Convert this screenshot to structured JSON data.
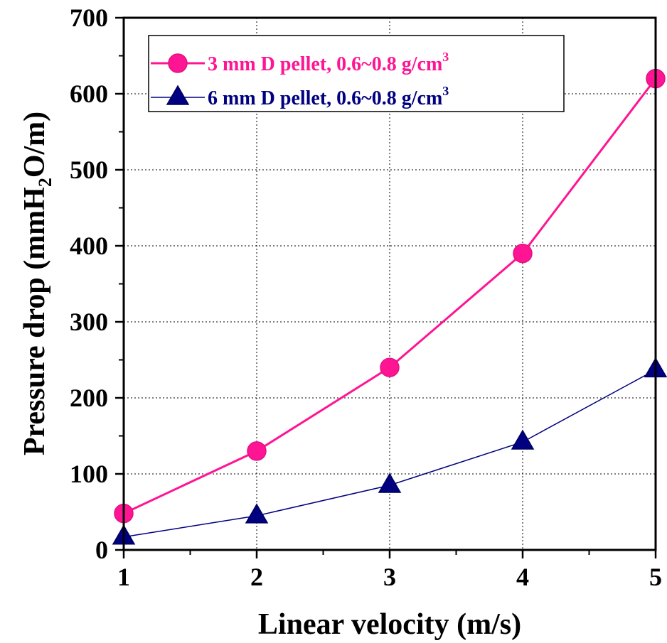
{
  "chart_data": {
    "type": "line",
    "title": "",
    "xlabel": "Linear velocity (m/s)",
    "ylabel": {
      "before": "Pressure drop (mmH",
      "sub": "2",
      "after": "O/m)"
    },
    "xlim": [
      1,
      5
    ],
    "ylim": [
      0,
      700
    ],
    "xticks": [
      "1",
      "2",
      "3",
      "4",
      "5"
    ],
    "yticks": [
      "0",
      "100",
      "200",
      "300",
      "400",
      "500",
      "600",
      "700"
    ],
    "grid": true,
    "legend_position": "top-left",
    "series": [
      {
        "name": "3 mm D pellet, 0.6~0.8 g/cm3",
        "name_main": "3 mm D pellet, 0.6~0.8 g/cm",
        "name_sup": "3",
        "marker": "circle",
        "color": "#ff1493",
        "x": [
          1,
          2,
          3,
          4,
          5
        ],
        "y": [
          48,
          130,
          240,
          390,
          620
        ]
      },
      {
        "name": "6 mm D pellet, 0.6~0.8 g/cm3",
        "name_main": "6 mm D pellet, 0.6~0.8 g/cm",
        "name_sup": "3",
        "marker": "triangle",
        "color": "#000080",
        "x": [
          1,
          2,
          3,
          4,
          5
        ],
        "y": [
          17,
          45,
          85,
          142,
          237
        ]
      }
    ]
  }
}
